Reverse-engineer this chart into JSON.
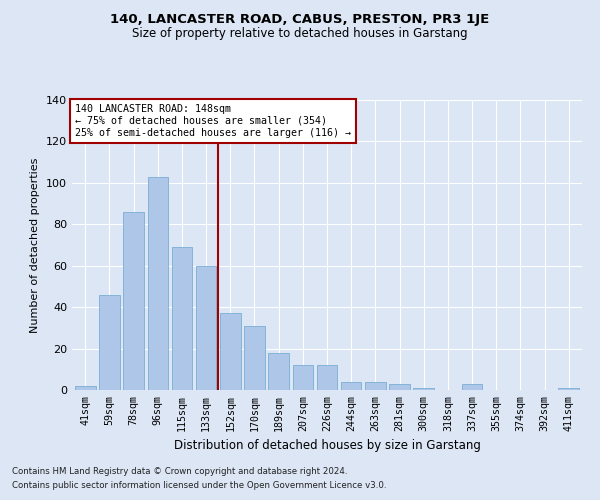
{
  "title": "140, LANCASTER ROAD, CABUS, PRESTON, PR3 1JE",
  "subtitle": "Size of property relative to detached houses in Garstang",
  "xlabel": "Distribution of detached houses by size in Garstang",
  "ylabel": "Number of detached properties",
  "categories": [
    "41sqm",
    "59sqm",
    "78sqm",
    "96sqm",
    "115sqm",
    "133sqm",
    "152sqm",
    "170sqm",
    "189sqm",
    "207sqm",
    "226sqm",
    "244sqm",
    "263sqm",
    "281sqm",
    "300sqm",
    "318sqm",
    "337sqm",
    "355sqm",
    "374sqm",
    "392sqm",
    "411sqm"
  ],
  "values": [
    2,
    46,
    86,
    103,
    69,
    60,
    37,
    31,
    18,
    12,
    12,
    4,
    4,
    3,
    1,
    0,
    3,
    0,
    0,
    0,
    1
  ],
  "bar_color": "#aec6e8",
  "bar_edge_color": "#7aadd4",
  "vline_color": "#a00000",
  "ylim": [
    0,
    140
  ],
  "yticks": [
    0,
    20,
    40,
    60,
    80,
    100,
    120,
    140
  ],
  "annotation_line1": "140 LANCASTER ROAD: 148sqm",
  "annotation_line2": "← 75% of detached houses are smaller (354)",
  "annotation_line3": "25% of semi-detached houses are larger (116) →",
  "annotation_box_color": "#ffffff",
  "annotation_box_edge_color": "#a00000",
  "background_color": "#dce6f5",
  "plot_bg_color": "#dce6f5",
  "footer1": "Contains HM Land Registry data © Crown copyright and database right 2024.",
  "footer2": "Contains public sector information licensed under the Open Government Licence v3.0."
}
